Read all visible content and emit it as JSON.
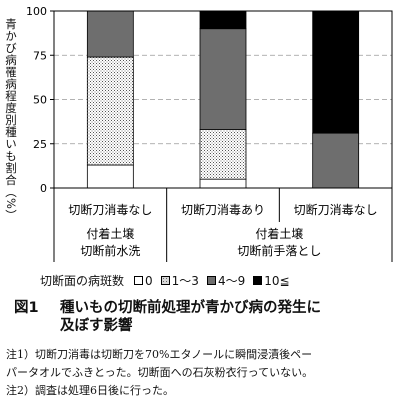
{
  "chart_data": {
    "type": "bar",
    "stacked": true,
    "ylabel": "青かび病罹病程度別種いも割合（%）",
    "ylim": [
      0,
      100
    ],
    "yticks": [
      0,
      25,
      50,
      75,
      100
    ],
    "grid": "dashed at 25, 50, 75",
    "categories": [
      "切断刀消毒なし",
      "切断刀消毒あり",
      "切断刀消毒なし"
    ],
    "groups": [
      {
        "label_line1": "付着土壌",
        "label_line2": "切断前水洗",
        "span": [
          0,
          0
        ]
      },
      {
        "label_line1": "付着土壌",
        "label_line2": "切断前手落とし",
        "span": [
          1,
          2
        ]
      }
    ],
    "series": [
      {
        "name": "0",
        "values": [
          13,
          5,
          0
        ]
      },
      {
        "name": "1～3",
        "values": [
          61,
          28,
          0
        ]
      },
      {
        "name": "4～9",
        "values": [
          26,
          57,
          31
        ]
      },
      {
        "name": "10≦",
        "values": [
          0,
          10,
          69
        ]
      }
    ]
  },
  "legend": {
    "label": "切断面の病斑数"
  },
  "figure": {
    "number": "図1",
    "title_line1": "種いもの切断前処理が青かび病の発生に",
    "title_line2": "及ぼす影響"
  },
  "notes": [
    "注1）切断刀消毒は切断刀を70%エタノールに瞬間浸漬後ペー",
    "パータオルでふきとった。切断面への石灰粉衣行っていない。",
    "注2）調査は処理6日後に行った。"
  ]
}
